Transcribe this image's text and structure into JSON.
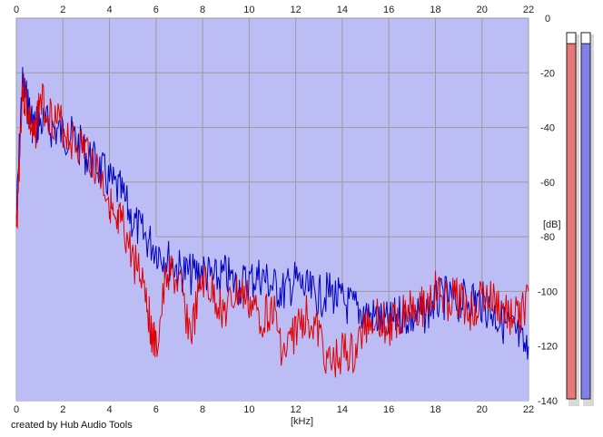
{
  "credit_text": "created by Hub Audio Tools",
  "colors": {
    "background": "#ffffff",
    "plot_fill": "#bdbdf6",
    "grid": "#9a9a9a",
    "left_channel": "#e00000",
    "right_channel": "#0000c0",
    "meter_left_fill": "#e87878",
    "meter_right_fill": "#8080e8"
  },
  "chart_data": {
    "type": "line",
    "xlabel": "[kHz]",
    "ylabel": "[dB]",
    "xlim": [
      0,
      22
    ],
    "ylim": [
      -140,
      0
    ],
    "x_ticks": [
      "0",
      "2",
      "4",
      "6",
      "8",
      "10",
      "12",
      "14",
      "16",
      "18",
      "20",
      "22"
    ],
    "y_ticks": [
      "0",
      "-20",
      "-40",
      "-60",
      "-80",
      "-100",
      "-120",
      "-140"
    ],
    "grid": true,
    "series": [
      {
        "color": "#e00000",
        "x": [
          0,
          0.25,
          0.5,
          0.75,
          1,
          1.5,
          2,
          2.5,
          3,
          3.5,
          4,
          4.25,
          4.5,
          5,
          5.5,
          5.75,
          6,
          6.5,
          7,
          7.5,
          8,
          8.5,
          9,
          9.5,
          10,
          10.5,
          11,
          11.5,
          12,
          12.5,
          13,
          13.5,
          14,
          14.5,
          15,
          15.5,
          16,
          16.5,
          17,
          17.5,
          18,
          18.5,
          19,
          19.5,
          20,
          20.5,
          21,
          21.5,
          22
        ],
        "y": [
          -75,
          -22,
          -30,
          -42,
          -26,
          -32,
          -36,
          -42,
          -44,
          -52,
          -62,
          -76,
          -70,
          -84,
          -92,
          -108,
          -118,
          -88,
          -94,
          -112,
          -92,
          -98,
          -104,
          -96,
          -100,
          -106,
          -102,
          -120,
          -110,
          -104,
          -112,
          -124,
          -118,
          -120,
          -108,
          -104,
          -110,
          -104,
          -100,
          -102,
          -96,
          -100,
          -98,
          -104,
          -98,
          -100,
          -104,
          -106,
          -100
        ]
      },
      {
        "color": "#0000c0",
        "x": [
          0,
          0.25,
          0.5,
          0.75,
          1,
          1.5,
          2,
          2.5,
          3,
          3.5,
          4,
          4.5,
          5,
          5.5,
          6,
          6.5,
          7,
          7.5,
          8,
          8.5,
          9,
          9.5,
          10,
          10.5,
          11,
          11.5,
          12,
          12.5,
          13,
          13.5,
          14,
          14.5,
          15,
          15.5,
          16,
          16.5,
          17,
          17.5,
          18,
          18.5,
          19,
          19.5,
          20,
          20.5,
          21,
          21.5,
          22
        ],
        "y": [
          -70,
          -20,
          -28,
          -36,
          -34,
          -36,
          -38,
          -40,
          -46,
          -50,
          -56,
          -60,
          -70,
          -76,
          -80,
          -84,
          -88,
          -90,
          -88,
          -92,
          -90,
          -94,
          -92,
          -90,
          -94,
          -96,
          -92,
          -96,
          -98,
          -96,
          -100,
          -102,
          -104,
          -106,
          -108,
          -104,
          -106,
          -104,
          -100,
          -98,
          -100,
          -98,
          -100,
          -104,
          -108,
          -112,
          -120
        ]
      }
    ]
  },
  "level_meters": {
    "left_level": 0.97,
    "right_level": 0.97
  }
}
